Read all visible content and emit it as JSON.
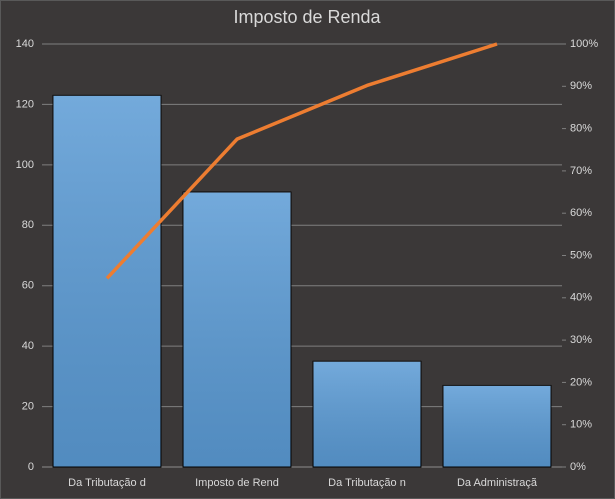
{
  "chart_data": {
    "type": "pareto",
    "title": "Imposto de Renda",
    "categories": [
      "Da Tributação d",
      "Imposto de Rend",
      "Da Tributação n",
      "Da Administraçã"
    ],
    "series": [
      {
        "type": "bar",
        "color": "#5b9bd5",
        "values": [
          123,
          91,
          35,
          27
        ]
      },
      {
        "type": "line",
        "axis": "y2",
        "color": "#ed7d31",
        "values": [
          44.6,
          77.5,
          90.2,
          100
        ]
      }
    ],
    "ylim": [
      0,
      140
    ],
    "yticks": [
      0,
      20,
      40,
      60,
      80,
      100,
      120,
      140
    ],
    "y2lim": [
      0,
      100
    ],
    "y2ticks": [
      {
        "value": 0,
        "label": "0%"
      },
      {
        "value": 10,
        "label": "10%"
      },
      {
        "value": 20,
        "label": "20%"
      },
      {
        "value": 30,
        "label": "30%"
      },
      {
        "value": 40,
        "label": "40%"
      },
      {
        "value": 50,
        "label": "50%"
      },
      {
        "value": 60,
        "label": "60%"
      },
      {
        "value": 70,
        "label": "70%"
      },
      {
        "value": 80,
        "label": "80%"
      },
      {
        "value": 90,
        "label": "90%"
      },
      {
        "value": 100,
        "label": "100%"
      }
    ],
    "grid": true
  }
}
